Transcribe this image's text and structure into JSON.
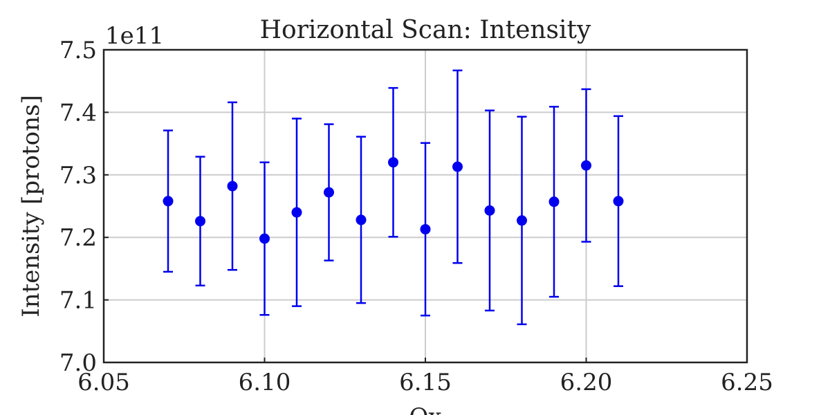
{
  "chart_data": {
    "type": "scatter",
    "title": "Horizontal Scan: Intensity",
    "xlabel": "Qx",
    "ylabel": "Intensity [protons]",
    "y_offset_label": "1e11",
    "xlim": [
      6.05,
      6.25
    ],
    "ylim": [
      7.0,
      7.5
    ],
    "x_ticks": [
      "6.05",
      "6.10",
      "6.15",
      "6.20",
      "6.25"
    ],
    "y_ticks": [
      "7.0",
      "7.1",
      "7.2",
      "7.3",
      "7.4",
      "7.5"
    ],
    "grid": true,
    "color": "#0000ee",
    "series": [
      {
        "x": [
          6.07,
          6.08,
          6.09,
          6.1,
          6.11,
          6.12,
          6.13,
          6.14,
          6.15,
          6.16,
          6.17,
          6.18,
          6.19,
          6.2,
          6.21
        ],
        "y": [
          7.258,
          7.226,
          7.282,
          7.198,
          7.24,
          7.272,
          7.228,
          7.32,
          7.213,
          7.313,
          7.243,
          7.227,
          7.257,
          7.315,
          7.258
        ],
        "y_err": [
          0.113,
          0.103,
          0.134,
          0.122,
          0.15,
          0.109,
          0.133,
          0.119,
          0.138,
          0.154,
          0.16,
          0.166,
          0.152,
          0.122,
          0.136
        ]
      }
    ]
  }
}
